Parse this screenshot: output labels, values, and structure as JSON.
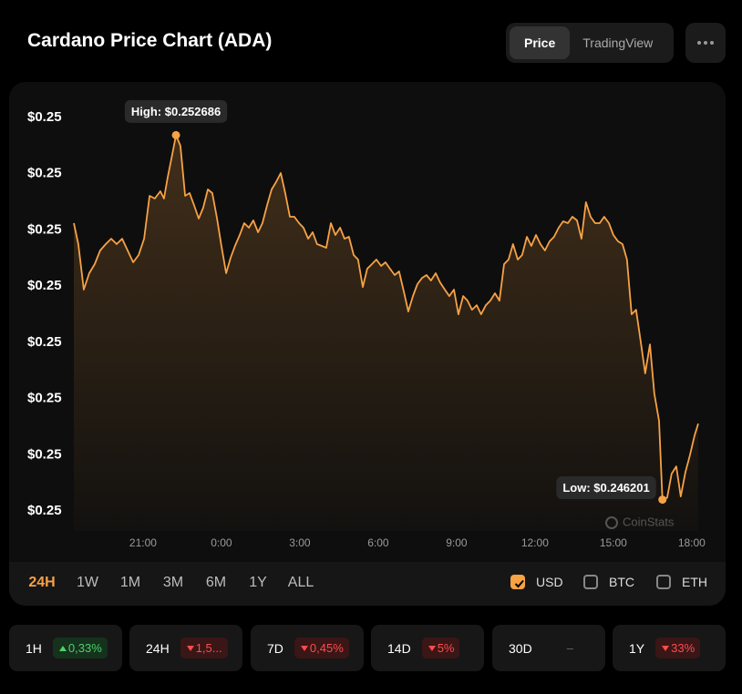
{
  "header": {
    "title": "Cardano Price Chart (ADA)",
    "tabs": [
      "Price",
      "TradingView"
    ],
    "active_tab": 0
  },
  "chart_data": {
    "type": "line",
    "color": "#f7a245",
    "x": [
      18.35,
      18.52,
      18.73,
      18.94,
      19.15,
      19.36,
      19.57,
      19.78,
      19.99,
      20.2,
      20.41,
      20.62,
      20.83,
      21.04,
      21.25,
      21.45,
      21.66,
      21.8,
      21.94,
      22.08,
      22.26,
      22.43,
      22.61,
      22.78,
      22.95,
      23.13,
      23.3,
      23.48,
      23.65,
      23.83,
      24.0,
      24.18,
      24.35,
      24.52,
      24.7,
      24.87,
      25.05,
      25.22,
      25.4,
      25.57,
      25.75,
      25.92,
      26.09,
      26.27,
      26.44,
      26.62,
      26.79,
      26.97,
      27.14,
      27.32,
      27.49,
      27.66,
      27.84,
      28.01,
      28.19,
      28.36,
      28.54,
      28.71,
      28.88,
      29.06,
      29.23,
      29.41,
      29.58,
      29.76,
      29.93,
      30.11,
      30.28,
      30.45,
      30.63,
      30.8,
      30.98,
      31.15,
      31.33,
      31.5,
      31.68,
      31.85,
      32.02,
      32.2,
      32.37,
      32.55,
      32.72,
      32.9,
      33.07,
      33.25,
      33.42,
      33.59,
      33.77,
      33.94,
      34.12,
      34.29,
      34.47,
      34.64,
      34.82,
      34.99,
      35.16,
      35.34,
      35.51,
      35.69,
      35.86,
      36.04,
      36.21,
      36.38,
      36.56,
      36.73,
      36.91,
      37.08,
      37.26,
      37.43,
      37.61,
      37.78,
      37.95,
      38.13,
      38.3,
      38.48,
      38.65,
      38.83,
      39.0,
      39.18,
      39.35,
      39.52,
      39.7,
      39.87,
      40.05,
      40.22,
      40.4,
      40.57,
      40.75,
      40.88,
      41.06,
      41.23,
      41.41,
      41.58,
      41.76,
      41.93,
      42.11,
      42.25
    ],
    "values": [
      0.25112,
      0.250747,
      0.249937,
      0.250229,
      0.250391,
      0.250634,
      0.250747,
      0.250844,
      0.250747,
      0.250844,
      0.250634,
      0.250423,
      0.250553,
      0.250844,
      0.251606,
      0.251558,
      0.251687,
      0.251558,
      0.25193,
      0.252254,
      0.252686,
      0.252498,
      0.251606,
      0.251655,
      0.251444,
      0.251201,
      0.251395,
      0.25172,
      0.251655,
      0.251201,
      0.250715,
      0.250229,
      0.250504,
      0.250715,
      0.250909,
      0.25112,
      0.251039,
      0.251169,
      0.250958,
      0.25112,
      0.251444,
      0.25172,
      0.251849,
      0.252011,
      0.251655,
      0.251233,
      0.251233,
      0.25112,
      0.251039,
      0.250844,
      0.250958,
      0.250747,
      0.250715,
      0.250682,
      0.25112,
      0.250909,
      0.251039,
      0.250844,
      0.250877,
      0.250553,
      0.250472,
      0.249985,
      0.25031,
      0.250391,
      0.250472,
      0.250358,
      0.250423,
      0.25031,
      0.250196,
      0.250261,
      0.249904,
      0.249548,
      0.249823,
      0.250034,
      0.250147,
      0.250196,
      0.250099,
      0.250229,
      0.250066,
      0.249937,
      0.249823,
      0.249937,
      0.249499,
      0.249823,
      0.249742,
      0.24958,
      0.249661,
      0.249499,
      0.249661,
      0.249742,
      0.249872,
      0.249742,
      0.250391,
      0.250472,
      0.250747,
      0.250472,
      0.250553,
      0.250877,
      0.250715,
      0.250909,
      0.250747,
      0.250634,
      0.250796,
      0.250877,
      0.251039,
      0.251152,
      0.25112,
      0.251233,
      0.251169,
      0.250844,
      0.251493,
      0.251233,
      0.25112,
      0.25112,
      0.251233,
      0.25112,
      0.250909,
      0.250796,
      0.250747,
      0.250472,
      0.249499,
      0.24958,
      0.249013,
      0.248446,
      0.248964,
      0.248089,
      0.247603,
      0.246201,
      0.246235,
      0.246663,
      0.246792,
      0.246258,
      0.246695,
      0.246987,
      0.247344,
      0.247554
    ],
    "xlim": [
      18.35,
      42.25
    ],
    "xticks": [
      {
        "value": 21,
        "label": "21:00"
      },
      {
        "value": 24,
        "label": "0:00"
      },
      {
        "value": 27,
        "label": "3:00"
      },
      {
        "value": 30,
        "label": "6:00"
      },
      {
        "value": 33,
        "label": "9:00"
      },
      {
        "value": 36,
        "label": "12:00"
      },
      {
        "value": 39,
        "label": "15:00"
      },
      {
        "value": 42,
        "label": "18:00"
      }
    ],
    "ylim": [
      0.246,
      0.253
    ],
    "yticks": [
      {
        "value": 0.253,
        "label": "$0.25"
      },
      {
        "value": 0.252,
        "label": "$0.25"
      },
      {
        "value": 0.251,
        "label": "$0.25"
      },
      {
        "value": 0.25,
        "label": "$0.25"
      },
      {
        "value": 0.249,
        "label": "$0.25"
      },
      {
        "value": 0.248,
        "label": "$0.25"
      },
      {
        "value": 0.247,
        "label": "$0.25"
      },
      {
        "value": 0.246,
        "label": "$0.25"
      }
    ],
    "annotations": {
      "high": "High: $0.252686",
      "low": "Low: $0.246201"
    },
    "watermark": "CoinStats"
  },
  "ranges": {
    "items": [
      "24H",
      "1W",
      "1M",
      "3M",
      "6M",
      "1Y",
      "ALL"
    ],
    "active": 0
  },
  "currencies": {
    "items": [
      "USD",
      "BTC",
      "ETH"
    ],
    "checked": [
      true,
      false,
      false
    ]
  },
  "stats": [
    {
      "period": "1H",
      "change": "0,33%",
      "trend": "up"
    },
    {
      "period": "24H",
      "change": "1,5...",
      "trend": "down"
    },
    {
      "period": "7D",
      "change": "0,45%",
      "trend": "down"
    },
    {
      "period": "14D",
      "change": "5%",
      "trend": "down"
    },
    {
      "period": "30D",
      "change": "–"
    },
    {
      "period": "1Y",
      "change": "33%",
      "trend": "down"
    }
  ]
}
